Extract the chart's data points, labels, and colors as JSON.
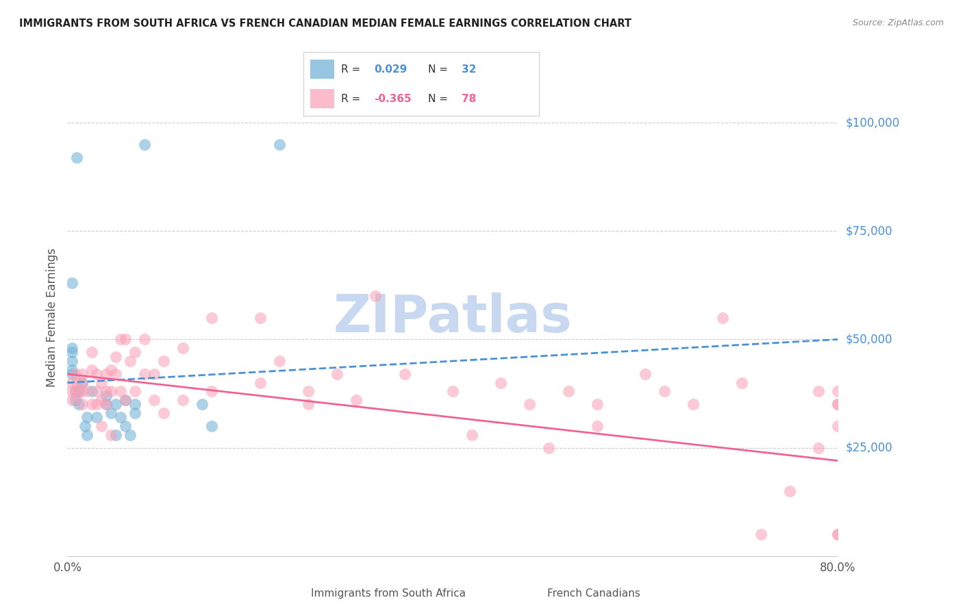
{
  "title": "IMMIGRANTS FROM SOUTH AFRICA VS FRENCH CANADIAN MEDIAN FEMALE EARNINGS CORRELATION CHART",
  "source": "Source: ZipAtlas.com",
  "ylabel": "Median Female Earnings",
  "ytick_labels": [
    "$25,000",
    "$50,000",
    "$75,000",
    "$100,000"
  ],
  "ytick_values": [
    25000,
    50000,
    75000,
    100000
  ],
  "xmin": 0.0,
  "xmax": 0.8,
  "ymin": 0,
  "ymax": 110000,
  "legend_blue_R": "0.029",
  "legend_blue_N": "32",
  "legend_pink_R": "-0.365",
  "legend_pink_N": "78",
  "legend_blue_label": "Immigrants from South Africa",
  "legend_pink_label": "French Canadians",
  "blue_scatter_x": [
    0.005,
    0.01,
    0.005,
    0.005,
    0.005,
    0.005,
    0.005,
    0.008,
    0.008,
    0.012,
    0.012,
    0.015,
    0.018,
    0.02,
    0.02,
    0.025,
    0.03,
    0.04,
    0.04,
    0.045,
    0.05,
    0.05,
    0.055,
    0.06,
    0.06,
    0.065,
    0.07,
    0.07,
    0.08,
    0.14,
    0.15,
    0.22
  ],
  "blue_scatter_y": [
    63000,
    92000,
    48000,
    47000,
    45000,
    43000,
    42000,
    38000,
    36000,
    38000,
    35000,
    40000,
    30000,
    32000,
    28000,
    38000,
    32000,
    35000,
    37000,
    33000,
    35000,
    28000,
    32000,
    36000,
    30000,
    28000,
    35000,
    33000,
    95000,
    35000,
    30000,
    95000
  ],
  "pink_scatter_x": [
    0.005,
    0.005,
    0.005,
    0.008,
    0.008,
    0.01,
    0.01,
    0.015,
    0.015,
    0.015,
    0.015,
    0.02,
    0.025,
    0.025,
    0.025,
    0.03,
    0.03,
    0.03,
    0.035,
    0.035,
    0.035,
    0.04,
    0.04,
    0.04,
    0.045,
    0.045,
    0.045,
    0.05,
    0.05,
    0.055,
    0.055,
    0.06,
    0.06,
    0.065,
    0.07,
    0.07,
    0.08,
    0.08,
    0.09,
    0.09,
    0.1,
    0.1,
    0.12,
    0.12,
    0.15,
    0.15,
    0.2,
    0.2,
    0.22,
    0.25,
    0.25,
    0.28,
    0.3,
    0.32,
    0.35,
    0.4,
    0.42,
    0.45,
    0.48,
    0.5,
    0.52,
    0.55,
    0.55,
    0.6,
    0.62,
    0.65,
    0.68,
    0.7,
    0.72,
    0.75,
    0.78,
    0.78,
    0.8,
    0.8,
    0.8,
    0.8,
    0.8,
    0.8
  ],
  "pink_scatter_y": [
    40000,
    38000,
    36000,
    42000,
    38000,
    40000,
    37000,
    42000,
    40000,
    38000,
    35000,
    38000,
    47000,
    43000,
    35000,
    42000,
    38000,
    35000,
    40000,
    36000,
    30000,
    42000,
    38000,
    35000,
    43000,
    38000,
    28000,
    46000,
    42000,
    50000,
    38000,
    50000,
    36000,
    45000,
    47000,
    38000,
    50000,
    42000,
    42000,
    36000,
    45000,
    33000,
    48000,
    36000,
    55000,
    38000,
    55000,
    40000,
    45000,
    38000,
    35000,
    42000,
    36000,
    60000,
    42000,
    38000,
    28000,
    40000,
    35000,
    25000,
    38000,
    30000,
    35000,
    42000,
    38000,
    35000,
    55000,
    40000,
    5000,
    15000,
    38000,
    25000,
    38000,
    35000,
    5000,
    35000,
    30000,
    5000
  ],
  "blue_line_x": [
    0.0,
    0.8
  ],
  "blue_line_y": [
    40000,
    50000
  ],
  "pink_line_x": [
    0.0,
    0.8
  ],
  "pink_line_y": [
    42000,
    22000
  ],
  "background_color": "#ffffff",
  "grid_color": "#cccccc",
  "title_color": "#222222",
  "axis_label_color": "#555555",
  "ytick_color": "#4a90d9",
  "xtick_color": "#555555",
  "source_color": "#888888",
  "blue_color": "#6baed6",
  "pink_color": "#fa9fb5",
  "blue_line_color": "#4a90d9",
  "pink_line_color": "#f06292",
  "watermark": "ZIPatlas",
  "watermark_color": "#c8d8f0"
}
